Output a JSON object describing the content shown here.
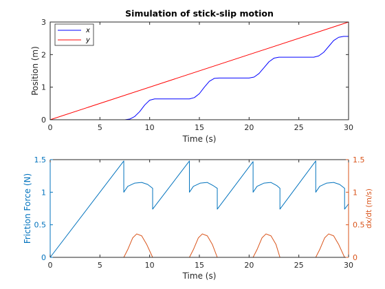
{
  "colors": {
    "x_series": "#0000ff",
    "y_series": "#ff0000",
    "friction": "#0072bd",
    "velocity": "#d95319",
    "axis": "#262626"
  },
  "chart_data": [
    {
      "type": "line",
      "title": "Simulation of stick-slip motion",
      "xlabel": "Time (s)",
      "ylabel": "Position (m)",
      "xlim": [
        0,
        30
      ],
      "ylim": [
        0,
        3
      ],
      "xticks": [
        "0",
        "5",
        "10",
        "15",
        "20",
        "25",
        "30"
      ],
      "yticks": [
        "0",
        "1",
        "2",
        "3"
      ],
      "legend": {
        "location": "top-left",
        "entries": [
          "x",
          "y"
        ]
      },
      "grid": false,
      "series": [
        {
          "name": "x",
          "color": "#0000ff",
          "points": [
            [
              0,
              0
            ],
            [
              7.5,
              0
            ],
            [
              8,
              0.02
            ],
            [
              8.5,
              0.1
            ],
            [
              9,
              0.25
            ],
            [
              9.5,
              0.45
            ],
            [
              10,
              0.6
            ],
            [
              10.5,
              0.64
            ],
            [
              11,
              0.64
            ],
            [
              14,
              0.64
            ],
            [
              14.5,
              0.68
            ],
            [
              15,
              0.8
            ],
            [
              15.5,
              1.0
            ],
            [
              16,
              1.18
            ],
            [
              16.5,
              1.27
            ],
            [
              17,
              1.28
            ],
            [
              20,
              1.28
            ],
            [
              20.5,
              1.31
            ],
            [
              21,
              1.42
            ],
            [
              21.5,
              1.6
            ],
            [
              22,
              1.78
            ],
            [
              22.5,
              1.89
            ],
            [
              23,
              1.92
            ],
            [
              26.5,
              1.92
            ],
            [
              27,
              1.96
            ],
            [
              27.5,
              2.07
            ],
            [
              28,
              2.25
            ],
            [
              28.5,
              2.43
            ],
            [
              29,
              2.53
            ],
            [
              29.5,
              2.56
            ],
            [
              30,
              2.56
            ]
          ]
        },
        {
          "name": "y",
          "color": "#ff0000",
          "points": [
            [
              0,
              0
            ],
            [
              30,
              3
            ]
          ]
        }
      ]
    },
    {
      "type": "line",
      "title": "",
      "xlabel": "Time (s)",
      "ylabel": "Friction Force (N)",
      "ylabel_right": "dx/dt (m/s)",
      "xlim": [
        0,
        30
      ],
      "ylim": [
        0,
        1.5
      ],
      "ylim_right": [
        0,
        1.5
      ],
      "xticks": [
        "0",
        "5",
        "10",
        "15",
        "20",
        "25",
        "30"
      ],
      "yticks": [
        "0",
        "0.5",
        "1",
        "1.5"
      ],
      "yticks_right": [
        "0",
        "0.5",
        "1",
        "1.5"
      ],
      "grid": false,
      "series": [
        {
          "name": "",
          "axis": "left",
          "color": "#0072bd",
          "points": [
            [
              0,
              0
            ],
            [
              7.4,
              1.48
            ],
            [
              7.4,
              1.0
            ],
            [
              7.8,
              1.09
            ],
            [
              8.5,
              1.14
            ],
            [
              9.2,
              1.15
            ],
            [
              9.8,
              1.12
            ],
            [
              10.3,
              1.06
            ],
            [
              10.3,
              0.74
            ],
            [
              14.0,
              1.48
            ],
            [
              14.0,
              1.0
            ],
            [
              14.4,
              1.09
            ],
            [
              15.1,
              1.14
            ],
            [
              15.8,
              1.15
            ],
            [
              16.4,
              1.1
            ],
            [
              16.8,
              1.06
            ],
            [
              16.8,
              0.74
            ],
            [
              20.4,
              1.47
            ],
            [
              20.4,
              1.0
            ],
            [
              20.8,
              1.09
            ],
            [
              21.5,
              1.14
            ],
            [
              22.2,
              1.15
            ],
            [
              22.8,
              1.1
            ],
            [
              23.1,
              1.06
            ],
            [
              23.1,
              0.74
            ],
            [
              26.7,
              1.48
            ],
            [
              26.7,
              1.0
            ],
            [
              27.1,
              1.09
            ],
            [
              27.8,
              1.14
            ],
            [
              28.5,
              1.15
            ],
            [
              29.1,
              1.12
            ],
            [
              29.6,
              1.06
            ],
            [
              29.6,
              0.74
            ],
            [
              30,
              0.82
            ]
          ]
        },
        {
          "name": "",
          "axis": "right",
          "color": "#d95319",
          "points": [
            [
              0,
              0
            ],
            [
              7.4,
              0
            ],
            [
              7.8,
              0.12
            ],
            [
              8.3,
              0.3
            ],
            [
              8.7,
              0.36
            ],
            [
              9.2,
              0.33
            ],
            [
              9.7,
              0.2
            ],
            [
              10.3,
              0
            ],
            [
              14.0,
              0
            ],
            [
              14.4,
              0.12
            ],
            [
              14.9,
              0.3
            ],
            [
              15.3,
              0.36
            ],
            [
              15.8,
              0.33
            ],
            [
              16.3,
              0.2
            ],
            [
              16.8,
              0
            ],
            [
              20.4,
              0
            ],
            [
              20.8,
              0.12
            ],
            [
              21.3,
              0.3
            ],
            [
              21.7,
              0.36
            ],
            [
              22.2,
              0.33
            ],
            [
              22.7,
              0.2
            ],
            [
              23.1,
              0
            ],
            [
              26.7,
              0
            ],
            [
              27.1,
              0.12
            ],
            [
              27.6,
              0.3
            ],
            [
              28.0,
              0.36
            ],
            [
              28.5,
              0.33
            ],
            [
              29.0,
              0.2
            ],
            [
              29.6,
              0
            ],
            [
              30,
              0
            ]
          ]
        }
      ]
    }
  ]
}
